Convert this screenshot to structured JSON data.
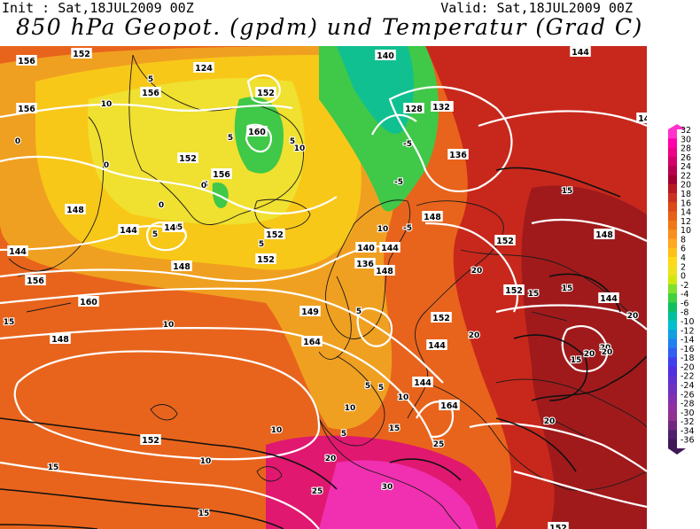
{
  "header": {
    "init": "Init : Sat,18JUL2009 00Z",
    "valid": "Valid: Sat,18JUL2009 00Z",
    "title": "850 hPa Geopot. (gpdm) und Temperatur (Grad C)"
  },
  "colorbar": {
    "labels": [
      "32",
      "30",
      "28",
      "26",
      "24",
      "22",
      "20",
      "18",
      "16",
      "14",
      "12",
      "10",
      "8",
      "6",
      "4",
      "2",
      "0",
      "-2",
      "-4",
      "-6",
      "-8",
      "-10",
      "-12",
      "-14",
      "-16",
      "-18",
      "-20",
      "-22",
      "-24",
      "-26",
      "-28",
      "-30",
      "-32",
      "-34",
      "-36"
    ],
    "colors": [
      "#ff33cc",
      "#ff00aa",
      "#ee0088",
      "#d4006a",
      "#b80050",
      "#a00030",
      "#b81820",
      "#cc3020",
      "#dd4818",
      "#e86018",
      "#f07818",
      "#f89020",
      "#ffa820",
      "#ffc018",
      "#ffd818",
      "#f0e020",
      "#d0e810",
      "#80e030",
      "#40d040",
      "#10c060",
      "#00c0a0",
      "#00c0d0",
      "#10a0e0",
      "#2080f0",
      "#3060f0",
      "#4040f0",
      "#5030e0",
      "#6030d0",
      "#7030c0",
      "#8030b0",
      "#9030a0",
      "#903090",
      "#702880",
      "#502070",
      "#401858"
    ]
  },
  "geopotential_labels": [
    "156",
    "152",
    "124",
    "140",
    "144",
    "156",
    "152",
    "156",
    "128",
    "132",
    "160",
    "136",
    "156",
    "152",
    "148",
    "140",
    "152",
    "144",
    "148",
    "144",
    "148",
    "148",
    "152",
    "140",
    "136",
    "152",
    "148",
    "144",
    "152",
    "144",
    "156",
    "160",
    "149",
    "152",
    "144",
    "144",
    "148",
    "164",
    "152",
    "164",
    "152",
    "148",
    "132"
  ],
  "temperature_labels": [
    "10",
    "5",
    "0",
    "-5",
    "5",
    "0",
    "5",
    "5",
    "-5",
    "10",
    "5",
    "0",
    "0",
    "5",
    "5",
    "10",
    "15",
    "10",
    "15",
    "20",
    "15",
    "20",
    "15",
    "20",
    "20",
    "20",
    "15",
    "10",
    "10",
    "10",
    "15",
    "10",
    "20",
    "15",
    "20",
    "25",
    "25",
    "30",
    "20",
    "15",
    "5",
    "5",
    "5",
    "-5",
    "5"
  ]
}
